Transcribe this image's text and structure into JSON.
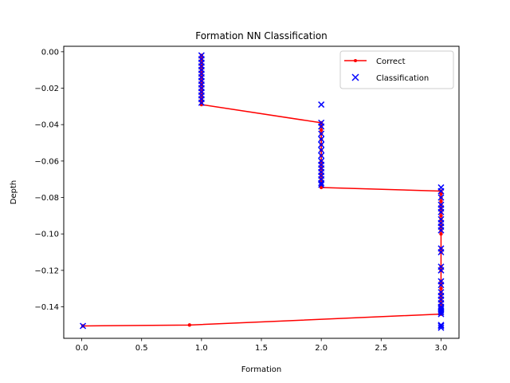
{
  "chart_data": {
    "type": "line",
    "title": "Formation NN Classification",
    "xlabel": "Formation",
    "ylabel": "Depth",
    "xlim": [
      -0.15,
      3.15
    ],
    "ylim": [
      -0.1573,
      0.003
    ],
    "xticks": [
      0.0,
      0.5,
      1.0,
      1.5,
      2.0,
      2.5,
      3.0
    ],
    "xtick_labels": [
      "0.0",
      "0.5",
      "1.0",
      "1.5",
      "2.0",
      "2.5",
      "3.0"
    ],
    "yticks": [
      0.0,
      -0.02,
      -0.04,
      -0.06,
      -0.08,
      -0.1,
      -0.12,
      -0.14
    ],
    "ytick_labels": [
      "0.00",
      "−0.02",
      "−0.04",
      "−0.06",
      "−0.08",
      "−0.10",
      "−0.12",
      "−0.14"
    ],
    "grid": false,
    "legend_position": "upper right",
    "series": [
      {
        "name": "Correct",
        "style": "line-with-dots",
        "color": "#ff0000",
        "x": [
          1,
          1,
          1,
          1,
          1,
          1,
          1,
          1,
          1,
          1,
          1,
          1,
          1,
          1,
          1,
          1,
          2,
          2,
          2,
          2,
          2,
          2,
          2,
          2,
          2,
          2,
          2,
          2,
          2,
          2,
          2,
          2,
          2,
          3,
          3,
          3,
          3,
          3,
          3,
          3,
          3,
          3,
          3,
          3,
          3,
          3,
          3,
          3,
          3,
          3,
          3,
          3,
          3,
          3,
          3,
          3,
          3,
          3,
          3,
          3,
          3,
          3,
          0.9,
          0.01
        ],
        "y": [
          -0.002,
          -0.004,
          -0.006,
          -0.008,
          -0.01,
          -0.012,
          -0.014,
          -0.016,
          -0.018,
          -0.02,
          -0.022,
          -0.024,
          -0.026,
          -0.027,
          -0.028,
          -0.029,
          -0.039,
          -0.041,
          -0.043,
          -0.045,
          -0.048,
          -0.051,
          -0.054,
          -0.057,
          -0.06,
          -0.062,
          -0.064,
          -0.066,
          -0.068,
          -0.07,
          -0.072,
          -0.073,
          -0.0745,
          -0.0765,
          -0.078,
          -0.08,
          -0.082,
          -0.084,
          -0.086,
          -0.088,
          -0.09,
          -0.092,
          -0.094,
          -0.096,
          -0.098,
          -0.1,
          -0.108,
          -0.11,
          -0.118,
          -0.12,
          -0.126,
          -0.128,
          -0.13,
          -0.132,
          -0.134,
          -0.136,
          -0.138,
          -0.14,
          -0.141,
          -0.142,
          -0.143,
          -0.144,
          -0.15,
          -0.1505
        ]
      },
      {
        "name": "Classification",
        "style": "x-markers",
        "color": "#0000ff",
        "x": [
          1,
          1,
          1,
          1,
          1,
          1,
          1,
          1,
          1,
          1,
          1,
          1,
          1,
          1,
          2,
          2,
          2,
          2,
          2,
          2,
          2,
          2,
          2,
          2,
          2,
          2,
          2,
          2,
          2,
          2,
          3,
          3,
          3,
          3,
          3,
          3,
          3,
          3,
          3,
          3,
          3,
          3,
          3,
          3,
          3,
          3,
          3,
          3,
          3,
          3,
          3,
          3,
          3,
          3,
          3,
          3,
          3,
          3,
          0.01
        ],
        "y": [
          -0.002,
          -0.004,
          -0.006,
          -0.008,
          -0.01,
          -0.012,
          -0.014,
          -0.016,
          -0.018,
          -0.02,
          -0.022,
          -0.024,
          -0.026,
          -0.028,
          -0.029,
          -0.039,
          -0.041,
          -0.045,
          -0.048,
          -0.051,
          -0.054,
          -0.057,
          -0.06,
          -0.062,
          -0.064,
          -0.066,
          -0.068,
          -0.07,
          -0.072,
          -0.073,
          -0.0745,
          -0.0765,
          -0.08,
          -0.084,
          -0.086,
          -0.088,
          -0.092,
          -0.094,
          -0.096,
          -0.098,
          -0.108,
          -0.11,
          -0.118,
          -0.12,
          -0.126,
          -0.128,
          -0.132,
          -0.134,
          -0.136,
          -0.138,
          -0.14,
          -0.141,
          -0.142,
          -0.143,
          -0.144,
          -0.15,
          -0.1505,
          -0.1515,
          -0.1505
        ]
      }
    ]
  }
}
